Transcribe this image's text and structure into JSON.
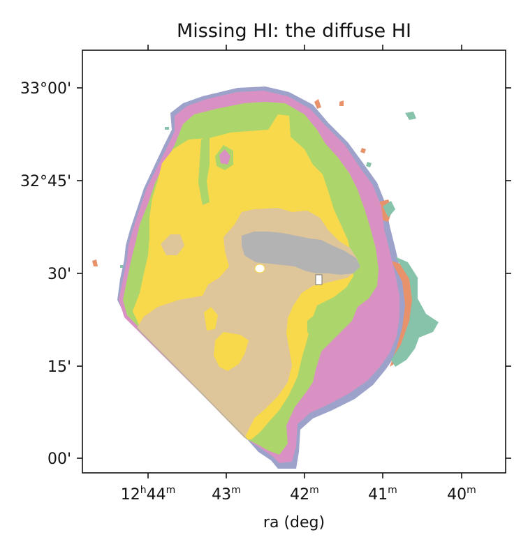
{
  "title": "Missing HI: the diffuse HI",
  "xlabel": "ra (deg)",
  "x_ticks": [
    {
      "h": "12",
      "hsup": "h",
      "m": "44",
      "msup": "m"
    },
    {
      "m": "43",
      "msup": "m"
    },
    {
      "m": "42",
      "msup": "m"
    },
    {
      "m": "41",
      "msup": "m"
    },
    {
      "m": "40",
      "msup": "m"
    }
  ],
  "y_ticks": [
    "33°00'",
    "32°45'",
    "30'",
    "15'",
    "00'"
  ],
  "colors": {
    "tan": "#dfc59a",
    "yellow": "#f8d94c",
    "green": "#acd66b",
    "pink": "#d991c4",
    "lavender": "#9da2cb",
    "orange": "#e8926c",
    "teal": "#87c3aa",
    "gray": "#b3b3b3"
  }
}
